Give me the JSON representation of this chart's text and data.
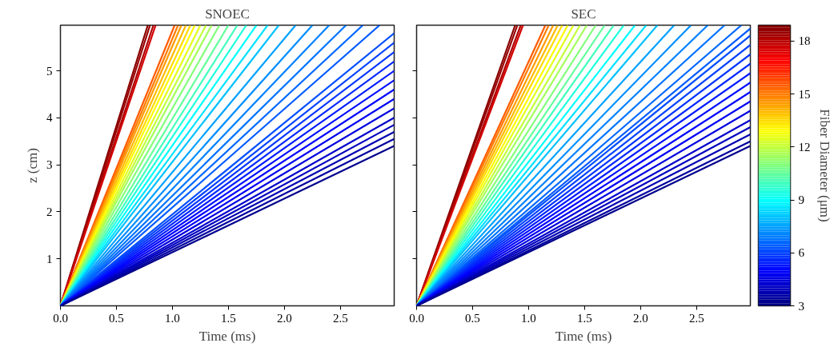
{
  "chart_data": [
    {
      "type": "line",
      "title": "SNOEC",
      "xlabel": "Time (ms)",
      "ylabel": "z (cm)",
      "xlim": [
        0,
        2.98
      ],
      "ylim": [
        0,
        5.97
      ],
      "xticks": [
        {
          "value": 0,
          "label": "0.0"
        },
        0.5,
        {
          "value": 1,
          "label": "1.0"
        },
        1.5,
        {
          "value": 2,
          "label": "2.0"
        },
        2.5
      ],
      "yticks": [
        1,
        2,
        3,
        4,
        5
      ],
      "grid": false,
      "series": [
        {
          "color": "#860000",
          "x": [
            0,
            0.78
          ],
          "values": [
            0,
            5.97
          ]
        },
        {
          "color": "#990000",
          "x": [
            0,
            0.8
          ],
          "values": [
            0,
            5.97
          ]
        },
        {
          "color": "#ac0000",
          "x": [
            0,
            0.83
          ],
          "values": [
            0,
            5.97
          ]
        },
        {
          "color": "#d30000",
          "x": [
            0,
            0.85
          ],
          "values": [
            0,
            5.97
          ]
        },
        {
          "color": "#ff5b00",
          "x": [
            0,
            1.02
          ],
          "values": [
            0,
            5.97
          ]
        },
        {
          "color": "#ff7b00",
          "x": [
            0,
            1.05
          ],
          "values": [
            0,
            5.97
          ]
        },
        {
          "color": "#ff9b00",
          "x": [
            0,
            1.08
          ],
          "values": [
            0,
            5.97
          ]
        },
        {
          "color": "#ffbb00",
          "x": [
            0,
            1.12
          ],
          "values": [
            0,
            5.97
          ]
        },
        {
          "color": "#ffdb00",
          "x": [
            0,
            1.16
          ],
          "values": [
            0,
            5.97
          ]
        },
        {
          "color": "#fffb00",
          "x": [
            0,
            1.2
          ],
          "values": [
            0,
            5.97
          ]
        },
        {
          "color": "#e3ff1c",
          "x": [
            0,
            1.25
          ],
          "values": [
            0,
            5.97
          ]
        },
        {
          "color": "#c3ff3c",
          "x": [
            0,
            1.3
          ],
          "values": [
            0,
            5.97
          ]
        },
        {
          "color": "#a3ff5c",
          "x": [
            0,
            1.35
          ],
          "values": [
            0,
            5.97
          ]
        },
        {
          "color": "#83ff7c",
          "x": [
            0,
            1.42
          ],
          "values": [
            0,
            5.97
          ]
        },
        {
          "color": "#63ff9c",
          "x": [
            0,
            1.5
          ],
          "values": [
            0,
            5.97
          ]
        },
        {
          "color": "#43ffbc",
          "x": [
            0,
            1.58
          ],
          "values": [
            0,
            5.97
          ]
        },
        {
          "color": "#22ffdd",
          "x": [
            0,
            1.66
          ],
          "values": [
            0,
            5.97
          ]
        },
        {
          "color": "#02fffd",
          "x": [
            0,
            1.75
          ],
          "values": [
            0,
            5.97
          ]
        },
        {
          "color": "#00e1ff",
          "x": [
            0,
            1.85
          ],
          "values": [
            0,
            5.97
          ]
        },
        {
          "color": "#00c1ff",
          "x": [
            0,
            1.95
          ],
          "values": [
            0,
            5.97
          ]
        },
        {
          "color": "#00a1ff",
          "x": [
            0,
            2.1
          ],
          "values": [
            0,
            5.97
          ]
        },
        {
          "color": "#008eff",
          "x": [
            0,
            2.25
          ],
          "values": [
            0,
            5.97
          ]
        },
        {
          "color": "#0081ff",
          "x": [
            0,
            2.4
          ],
          "values": [
            0,
            5.97
          ]
        },
        {
          "color": "#0074ff",
          "x": [
            0,
            2.55
          ],
          "values": [
            0,
            5.97
          ]
        },
        {
          "color": "#0068ff",
          "x": [
            0,
            2.7
          ],
          "values": [
            0,
            5.97
          ]
        },
        {
          "color": "#005bff",
          "x": [
            0,
            2.85
          ],
          "values": [
            0,
            5.97
          ]
        },
        {
          "color": "#004eff",
          "x": [
            0,
            2.98
          ],
          "values": [
            0,
            5.8
          ]
        },
        {
          "color": "#0041ff",
          "x": [
            0,
            2.98
          ],
          "values": [
            0,
            5.6
          ]
        },
        {
          "color": "#0034ff",
          "x": [
            0,
            2.98
          ],
          "values": [
            0,
            5.4
          ]
        },
        {
          "color": "#0027ff",
          "x": [
            0,
            2.98
          ],
          "values": [
            0,
            5.2
          ]
        },
        {
          "color": "#001bff",
          "x": [
            0,
            2.98
          ],
          "values": [
            0,
            5.0
          ]
        },
        {
          "color": "#000eff",
          "x": [
            0,
            2.98
          ],
          "values": [
            0,
            4.8
          ]
        },
        {
          "color": "#0001ff",
          "x": [
            0,
            2.98
          ],
          "values": [
            0,
            4.6
          ]
        },
        {
          "color": "#0000f3",
          "x": [
            0,
            2.98
          ],
          "values": [
            0,
            4.4
          ]
        },
        {
          "color": "#0000e0",
          "x": [
            0,
            2.98
          ],
          "values": [
            0,
            4.2
          ]
        },
        {
          "color": "#0000cc",
          "x": [
            0,
            2.98
          ],
          "values": [
            0,
            4.0
          ]
        },
        {
          "color": "#0000c0",
          "x": [
            0,
            2.98
          ],
          "values": [
            0,
            3.85
          ]
        },
        {
          "color": "#0000b3",
          "x": [
            0,
            2.98
          ],
          "values": [
            0,
            3.7
          ]
        },
        {
          "color": "#0000a0",
          "x": [
            0,
            2.98
          ],
          "values": [
            0,
            3.55
          ]
        },
        {
          "color": "#00008c",
          "x": [
            0,
            2.98
          ],
          "values": [
            0,
            3.4
          ]
        }
      ]
    },
    {
      "type": "line",
      "title": "SEC",
      "xlabel": "Time (ms)",
      "xlim": [
        0,
        2.98
      ],
      "ylim": [
        0,
        5.97
      ],
      "xticks": [
        {
          "value": 0,
          "label": "0.0"
        },
        0.5,
        {
          "value": 1,
          "label": "1.0"
        },
        1.5,
        {
          "value": 2,
          "label": "2.0"
        },
        2.5
      ],
      "yticks": [
        1,
        2,
        3,
        4,
        5
      ],
      "tick_labels": "x",
      "grid": false,
      "clabel": "Fiber Diameter (μm)",
      "clim": [
        3,
        18.9
      ],
      "cticks": [
        3,
        6,
        9,
        12,
        15,
        18
      ],
      "series": [
        {
          "color": "#860000",
          "x": [
            0,
            0.88
          ],
          "values": [
            0,
            5.97
          ]
        },
        {
          "color": "#990000",
          "x": [
            0,
            0.9
          ],
          "values": [
            0,
            5.97
          ]
        },
        {
          "color": "#ac0000",
          "x": [
            0,
            0.93
          ],
          "values": [
            0,
            5.97
          ]
        },
        {
          "color": "#d30000",
          "x": [
            0,
            0.95
          ],
          "values": [
            0,
            5.97
          ]
        },
        {
          "color": "#ff5b00",
          "x": [
            0,
            1.15
          ],
          "values": [
            0,
            5.97
          ]
        },
        {
          "color": "#ff7b00",
          "x": [
            0,
            1.18
          ],
          "values": [
            0,
            5.97
          ]
        },
        {
          "color": "#ff9b00",
          "x": [
            0,
            1.22
          ],
          "values": [
            0,
            5.97
          ]
        },
        {
          "color": "#ffbb00",
          "x": [
            0,
            1.26
          ],
          "values": [
            0,
            5.97
          ]
        },
        {
          "color": "#ffdb00",
          "x": [
            0,
            1.3
          ],
          "values": [
            0,
            5.97
          ]
        },
        {
          "color": "#fffb00",
          "x": [
            0,
            1.35
          ],
          "values": [
            0,
            5.97
          ]
        },
        {
          "color": "#e3ff1c",
          "x": [
            0,
            1.4
          ],
          "values": [
            0,
            5.97
          ]
        },
        {
          "color": "#c3ff3c",
          "x": [
            0,
            1.46
          ],
          "values": [
            0,
            5.97
          ]
        },
        {
          "color": "#a3ff5c",
          "x": [
            0,
            1.52
          ],
          "values": [
            0,
            5.97
          ]
        },
        {
          "color": "#83ff7c",
          "x": [
            0,
            1.6
          ],
          "values": [
            0,
            5.97
          ]
        },
        {
          "color": "#63ff9c",
          "x": [
            0,
            1.68
          ],
          "values": [
            0,
            5.97
          ]
        },
        {
          "color": "#43ffbc",
          "x": [
            0,
            1.76
          ],
          "values": [
            0,
            5.97
          ]
        },
        {
          "color": "#22ffdd",
          "x": [
            0,
            1.85
          ],
          "values": [
            0,
            5.97
          ]
        },
        {
          "color": "#02fffd",
          "x": [
            0,
            1.95
          ],
          "values": [
            0,
            5.97
          ]
        },
        {
          "color": "#00e1ff",
          "x": [
            0,
            2.05
          ],
          "values": [
            0,
            5.97
          ]
        },
        {
          "color": "#00c1ff",
          "x": [
            0,
            2.15
          ],
          "values": [
            0,
            5.97
          ]
        },
        {
          "color": "#00a1ff",
          "x": [
            0,
            2.3
          ],
          "values": [
            0,
            5.97
          ]
        },
        {
          "color": "#008eff",
          "x": [
            0,
            2.45
          ],
          "values": [
            0,
            5.97
          ]
        },
        {
          "color": "#0081ff",
          "x": [
            0,
            2.6
          ],
          "values": [
            0,
            5.97
          ]
        },
        {
          "color": "#0074ff",
          "x": [
            0,
            2.75
          ],
          "values": [
            0,
            5.97
          ]
        },
        {
          "color": "#0068ff",
          "x": [
            0,
            2.9
          ],
          "values": [
            0,
            5.97
          ]
        },
        {
          "color": "#005bff",
          "x": [
            0,
            2.98
          ],
          "values": [
            0,
            5.9
          ]
        },
        {
          "color": "#004eff",
          "x": [
            0,
            2.98
          ],
          "values": [
            0,
            5.75
          ]
        },
        {
          "color": "#0041ff",
          "x": [
            0,
            2.98
          ],
          "values": [
            0,
            5.55
          ]
        },
        {
          "color": "#0034ff",
          "x": [
            0,
            2.98
          ],
          "values": [
            0,
            5.35
          ]
        },
        {
          "color": "#0027ff",
          "x": [
            0,
            2.98
          ],
          "values": [
            0,
            5.15
          ]
        },
        {
          "color": "#001bff",
          "x": [
            0,
            2.98
          ],
          "values": [
            0,
            4.95
          ]
        },
        {
          "color": "#000eff",
          "x": [
            0,
            2.98
          ],
          "values": [
            0,
            4.75
          ]
        },
        {
          "color": "#0001ff",
          "x": [
            0,
            2.98
          ],
          "values": [
            0,
            4.55
          ]
        },
        {
          "color": "#0000f3",
          "x": [
            0,
            2.98
          ],
          "values": [
            0,
            4.35
          ]
        },
        {
          "color": "#0000e0",
          "x": [
            0,
            2.98
          ],
          "values": [
            0,
            4.15
          ]
        },
        {
          "color": "#0000cc",
          "x": [
            0,
            2.98
          ],
          "values": [
            0,
            3.95
          ]
        },
        {
          "color": "#0000c0",
          "x": [
            0,
            2.98
          ],
          "values": [
            0,
            3.8
          ]
        },
        {
          "color": "#0000b3",
          "x": [
            0,
            2.98
          ],
          "values": [
            0,
            3.65
          ]
        },
        {
          "color": "#0000a0",
          "x": [
            0,
            2.98
          ],
          "values": [
            0,
            3.5
          ]
        },
        {
          "color": "#00008c",
          "x": [
            0,
            2.98
          ],
          "values": [
            0,
            3.4
          ]
        }
      ]
    }
  ]
}
